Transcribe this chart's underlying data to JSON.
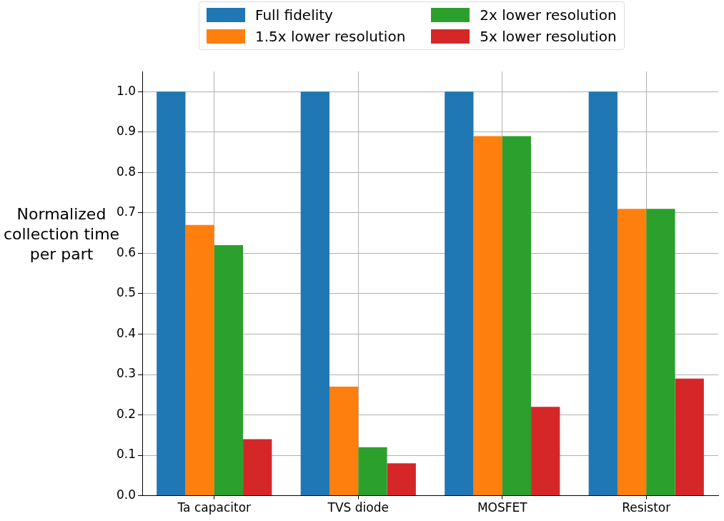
{
  "chart_data": {
    "type": "bar",
    "ylabel": "Normalized collection time per part",
    "categories": [
      "Ta capacitor",
      "TVS diode",
      "MOSFET",
      "Resistor"
    ],
    "series": [
      {
        "name": "Full fidelity",
        "color": "#1f77b4",
        "values": [
          1.0,
          1.0,
          1.0,
          1.0
        ]
      },
      {
        "name": "1.5x lower resolution",
        "color": "#ff7f0e",
        "values": [
          0.67,
          0.27,
          0.89,
          0.71
        ]
      },
      {
        "name": "2x lower resolution",
        "color": "#2ca02c",
        "values": [
          0.62,
          0.12,
          0.89,
          0.71
        ]
      },
      {
        "name": "5x lower resolution",
        "color": "#d62728",
        "values": [
          0.14,
          0.08,
          0.22,
          0.29
        ]
      }
    ],
    "ylim": [
      0,
      1.05
    ],
    "yticks": [
      {
        "value": 0,
        "label": "0.0"
      },
      {
        "value": 0.1,
        "label": "0.1"
      },
      {
        "value": 0.2,
        "label": "0.2"
      },
      {
        "value": 0.3,
        "label": "0.3"
      },
      {
        "value": 0.4,
        "label": "0.4"
      },
      {
        "value": 0.5,
        "label": "0.5"
      },
      {
        "value": 0.6,
        "label": "0.6"
      },
      {
        "value": 0.7,
        "label": "0.7"
      },
      {
        "value": 0.8,
        "label": "0.8"
      },
      {
        "value": 0.9,
        "label": "0.9"
      },
      {
        "value": 1,
        "label": "1.0"
      }
    ],
    "grid": true,
    "legend": "top"
  }
}
